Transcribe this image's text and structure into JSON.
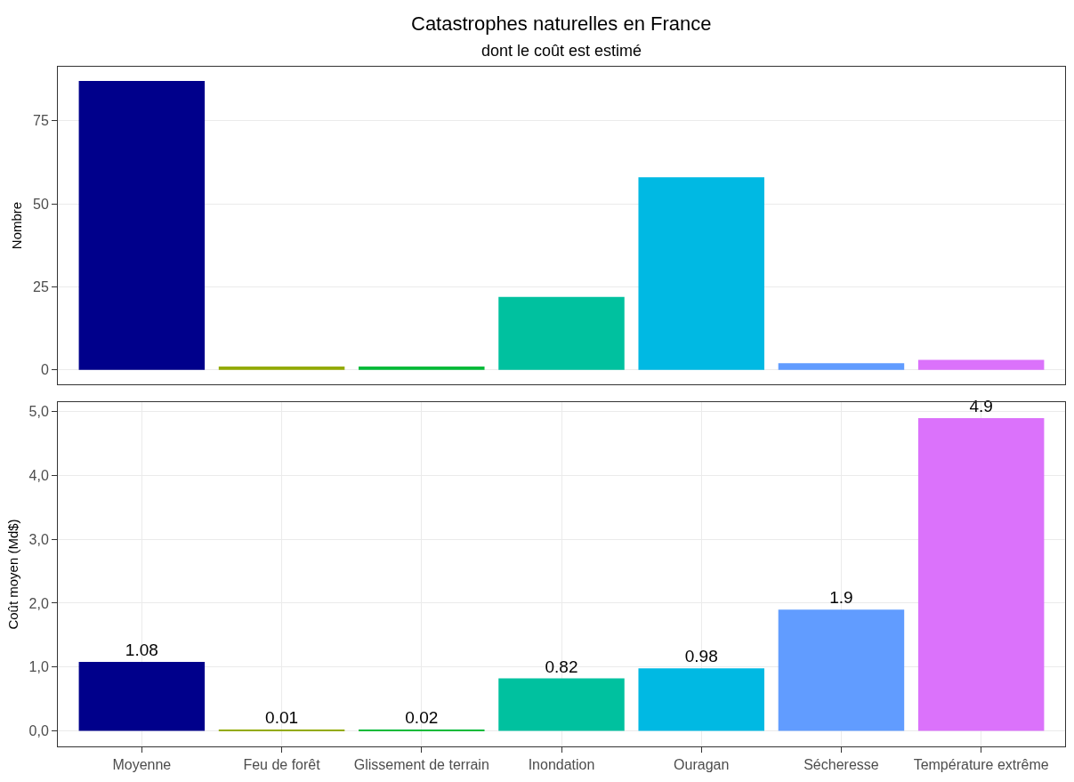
{
  "chart_data": [
    {
      "type": "bar",
      "title": "Catastrophes naturelles en France",
      "subtitle": "dont le coût est estimé",
      "ylabel": "Nombre",
      "categories": [
        null,
        null,
        null,
        null,
        null,
        null,
        null
      ],
      "values": [
        87,
        1,
        1,
        22,
        58,
        2,
        3
      ],
      "colors": [
        "#00008b",
        "#93aa00",
        "#00ba38",
        "#00c19f",
        "#00b9e3",
        "#619cff",
        "#db72fb"
      ],
      "ylim": [
        -4.35,
        91.3
      ],
      "yticks": [
        0,
        25,
        50,
        75
      ],
      "grid": true,
      "tick_labels": "y"
    },
    {
      "type": "bar",
      "ylabel": "Coût moyen (Md$)",
      "categories": [
        "Moyenne",
        "Feu de forêt",
        "Glissement de terrain",
        "Inondation",
        "Ouragan",
        "Sécheresse",
        "Température extrême"
      ],
      "values": [
        1.08,
        0.01,
        0.02,
        0.82,
        0.98,
        1.9,
        4.9
      ],
      "colors": [
        "#00008b",
        "#93aa00",
        "#00ba38",
        "#00c19f",
        "#00b9e3",
        "#619cff",
        "#db72fb"
      ],
      "ylim": [
        -0.245,
        5.15
      ],
      "yticks": [
        {
          "value": 0,
          "label": "0,0"
        },
        {
          "value": 1,
          "label": "1,0"
        },
        {
          "value": 2,
          "label": "2,0"
        },
        {
          "value": 3,
          "label": "3,0"
        },
        {
          "value": 4,
          "label": "4,0"
        },
        {
          "value": 5,
          "label": "5,0"
        }
      ],
      "grid": true,
      "data_labels": true
    }
  ]
}
